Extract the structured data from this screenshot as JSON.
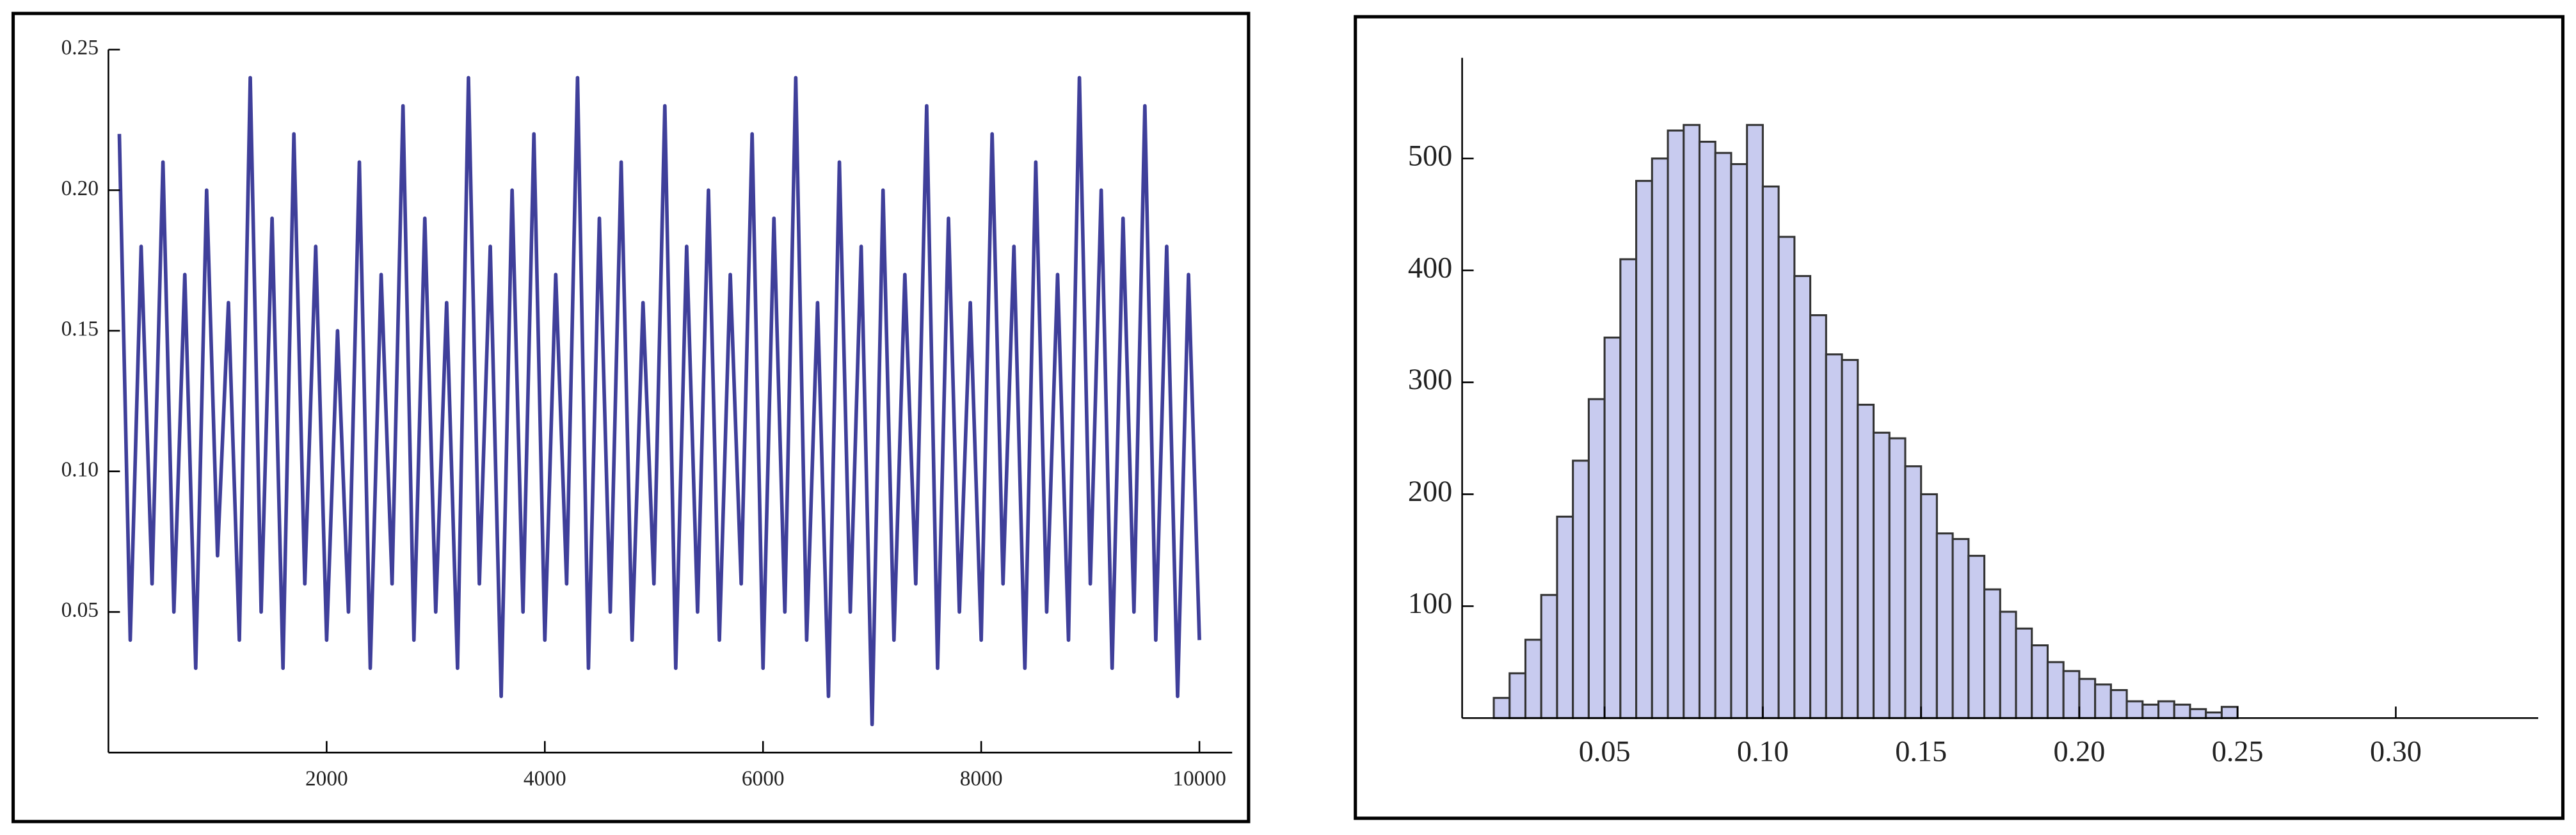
{
  "chart_data": [
    {
      "type": "line",
      "color": "#3f3f9a",
      "x": [
        100,
        200,
        300,
        400,
        500,
        600,
        700,
        800,
        900,
        1000,
        1100,
        1200,
        1300,
        1400,
        1500,
        1600,
        1700,
        1800,
        1900,
        2000,
        2100,
        2200,
        2300,
        2400,
        2500,
        2600,
        2700,
        2800,
        2900,
        3000,
        3100,
        3200,
        3300,
        3400,
        3500,
        3600,
        3700,
        3800,
        3900,
        4000,
        4100,
        4200,
        4300,
        4400,
        4500,
        4600,
        4700,
        4800,
        4900,
        5000,
        5100,
        5200,
        5300,
        5400,
        5500,
        5600,
        5700,
        5800,
        5900,
        6000,
        6100,
        6200,
        6300,
        6400,
        6500,
        6600,
        6700,
        6800,
        6900,
        7000,
        7100,
        7200,
        7300,
        7400,
        7500,
        7600,
        7700,
        7800,
        7900,
        8000,
        8100,
        8200,
        8300,
        8400,
        8500,
        8600,
        8700,
        8800,
        8900,
        9000,
        9100,
        9200,
        9300,
        9400,
        9500,
        9600,
        9700,
        9800,
        9900,
        10000
      ],
      "values": [
        0.22,
        0.04,
        0.18,
        0.06,
        0.21,
        0.05,
        0.17,
        0.03,
        0.2,
        0.07,
        0.16,
        0.04,
        0.24,
        0.05,
        0.19,
        0.03,
        0.22,
        0.06,
        0.18,
        0.04,
        0.15,
        0.05,
        0.21,
        0.03,
        0.17,
        0.06,
        0.23,
        0.04,
        0.19,
        0.05,
        0.16,
        0.03,
        0.24,
        0.06,
        0.18,
        0.02,
        0.2,
        0.05,
        0.22,
        0.04,
        0.17,
        0.06,
        0.24,
        0.03,
        0.19,
        0.05,
        0.21,
        0.04,
        0.16,
        0.06,
        0.23,
        0.03,
        0.18,
        0.05,
        0.2,
        0.04,
        0.17,
        0.06,
        0.22,
        0.03,
        0.19,
        0.05,
        0.24,
        0.04,
        0.16,
        0.02,
        0.21,
        0.05,
        0.18,
        0.01,
        0.2,
        0.04,
        0.17,
        0.06,
        0.23,
        0.03,
        0.19,
        0.05,
        0.16,
        0.04,
        0.22,
        0.06,
        0.18,
        0.03,
        0.21,
        0.05,
        0.17,
        0.04,
        0.24,
        0.06,
        0.2,
        0.03,
        0.19,
        0.05,
        0.23,
        0.04,
        0.18,
        0.02,
        0.17,
        0.04
      ],
      "xlim": [
        0,
        10300
      ],
      "ylim": [
        0,
        0.25
      ],
      "xticks": [
        2000,
        4000,
        6000,
        8000,
        10000
      ],
      "yticks": [
        0.05,
        {
          "value": 0.1,
          "label": "0.10"
        },
        0.15,
        {
          "value": 0.2,
          "label": "0.20"
        },
        0.25
      ]
    },
    {
      "type": "histogram",
      "color": "#c8cbef",
      "edge_color": "#333333",
      "bins": [
        0.015,
        0.02,
        0.025,
        0.03,
        0.035,
        0.04,
        0.045,
        0.05,
        0.055,
        0.06,
        0.065,
        0.07,
        0.075,
        0.08,
        0.085,
        0.09,
        0.095,
        0.1,
        0.105,
        0.11,
        0.115,
        0.12,
        0.125,
        0.13,
        0.135,
        0.14,
        0.145,
        0.15,
        0.155,
        0.16,
        0.165,
        0.17,
        0.175,
        0.18,
        0.185,
        0.19,
        0.195,
        0.2,
        0.205,
        0.21,
        0.215,
        0.22,
        0.225,
        0.23,
        0.235,
        0.24,
        0.245,
        0.25
      ],
      "values": [
        18,
        40,
        70,
        110,
        180,
        230,
        285,
        340,
        410,
        480,
        500,
        525,
        530,
        515,
        505,
        495,
        530,
        475,
        430,
        395,
        360,
        325,
        320,
        280,
        255,
        250,
        225,
        200,
        165,
        160,
        145,
        115,
        95,
        80,
        65,
        50,
        42,
        35,
        30,
        25,
        15,
        12,
        15,
        12,
        8,
        5,
        10
      ],
      "xlim": [
        0.005,
        0.345
      ],
      "ylim": [
        0,
        590
      ],
      "xticks": [
        0.05,
        {
          "value": 0.1,
          "label": "0.10"
        },
        0.15,
        {
          "value": 0.2,
          "label": "0.20"
        },
        0.25,
        {
          "value": 0.3,
          "label": "0.30"
        }
      ],
      "yticks": [
        100,
        200,
        300,
        400,
        500
      ]
    }
  ]
}
